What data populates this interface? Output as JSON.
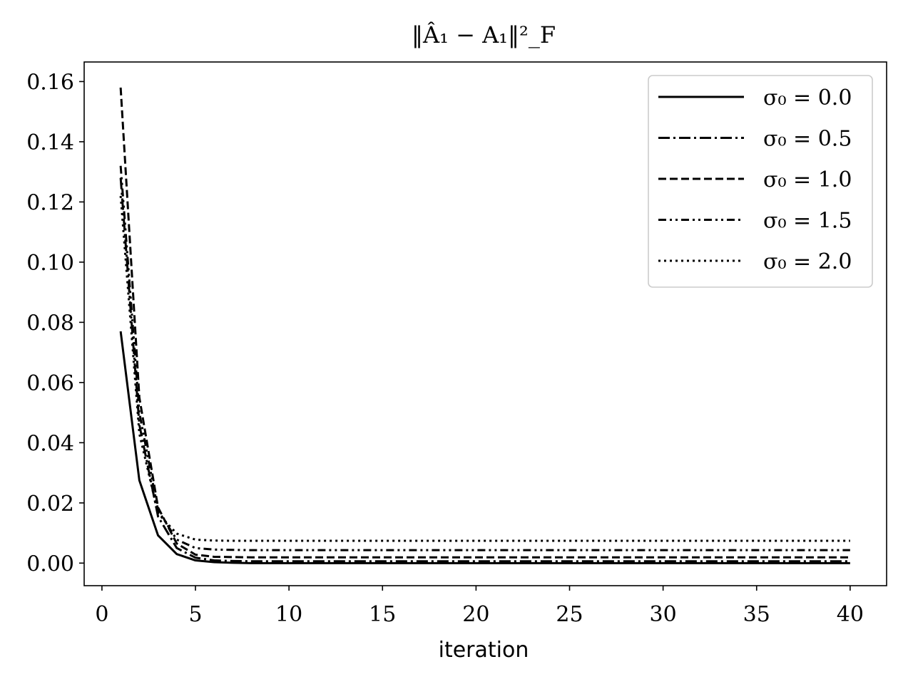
{
  "chart_data": {
    "type": "line",
    "title": "‖Â₁ − A₁‖²_F",
    "xlabel": "iteration",
    "ylabel": "",
    "xlim": [
      -0.95,
      41.95
    ],
    "ylim": [
      -0.0075,
      0.1665
    ],
    "xticks": [
      0,
      5,
      10,
      15,
      20,
      25,
      30,
      35,
      40
    ],
    "yticks": [
      0.0,
      0.02,
      0.04,
      0.06,
      0.08,
      0.1,
      0.12,
      0.14,
      0.16
    ],
    "ytick_labels": [
      "0.00",
      "0.02",
      "0.04",
      "0.06",
      "0.08",
      "0.10",
      "0.12",
      "0.14",
      "0.16"
    ],
    "grid": false,
    "legend": "top-right",
    "x": [
      1,
      2,
      3,
      4,
      5,
      6,
      7,
      8,
      9,
      10,
      11,
      12,
      13,
      14,
      15,
      16,
      17,
      18,
      19,
      20,
      21,
      22,
      23,
      24,
      25,
      26,
      27,
      28,
      29,
      30,
      31,
      32,
      33,
      34,
      35,
      36,
      37,
      38,
      39,
      40
    ],
    "series": [
      {
        "name": "σ₀ = 0.0",
        "dash": "solid",
        "color": "#000000",
        "values": [
          0.077,
          0.0275,
          0.0092,
          0.003,
          0.0009,
          0.0003,
          0.0001,
          0.0,
          0.0,
          0.0,
          0.0,
          0.0,
          0.0,
          0.0,
          0.0,
          0.0,
          0.0,
          0.0,
          0.0,
          0.0,
          0.0,
          0.0,
          0.0,
          0.0,
          0.0,
          0.0,
          0.0,
          0.0,
          0.0,
          0.0,
          0.0,
          0.0,
          0.0,
          0.0,
          0.0,
          0.0,
          0.0,
          0.0,
          0.0,
          0.0
        ]
      },
      {
        "name": "σ₀ = 0.5",
        "dash": "dashdot",
        "color": "#000000",
        "values": [
          0.128,
          0.046,
          0.0155,
          0.005,
          0.0018,
          0.0009,
          0.0007,
          0.0006,
          0.0006,
          0.0006,
          0.0006,
          0.0006,
          0.0006,
          0.0006,
          0.0006,
          0.0006,
          0.0006,
          0.0006,
          0.0006,
          0.0006,
          0.0006,
          0.0006,
          0.0006,
          0.0006,
          0.0006,
          0.0006,
          0.0006,
          0.0006,
          0.0006,
          0.0006,
          0.0006,
          0.0006,
          0.0006,
          0.0006,
          0.0006,
          0.0006,
          0.0006,
          0.0006,
          0.0006,
          0.0006
        ]
      },
      {
        "name": "σ₀ = 1.0",
        "dash": "dashed",
        "color": "#000000",
        "values": [
          0.158,
          0.055,
          0.0185,
          0.0065,
          0.0028,
          0.0021,
          0.002,
          0.0019,
          0.0019,
          0.0019,
          0.0019,
          0.0019,
          0.0019,
          0.0019,
          0.0019,
          0.0019,
          0.0019,
          0.0019,
          0.0019,
          0.0019,
          0.0019,
          0.0019,
          0.0019,
          0.0019,
          0.0019,
          0.0019,
          0.0019,
          0.0019,
          0.0019,
          0.0019,
          0.0019,
          0.0019,
          0.0019,
          0.0019,
          0.0019,
          0.0019,
          0.0019,
          0.0019,
          0.0019,
          0.0019
        ]
      },
      {
        "name": "σ₀ = 1.5",
        "dash": "dashdotdot",
        "color": "#000000",
        "values": [
          0.132,
          0.05,
          0.0175,
          0.0078,
          0.005,
          0.0045,
          0.0044,
          0.0043,
          0.0043,
          0.0043,
          0.0043,
          0.0043,
          0.0043,
          0.0043,
          0.0043,
          0.0043,
          0.0043,
          0.0043,
          0.0043,
          0.0043,
          0.0043,
          0.0043,
          0.0043,
          0.0043,
          0.0043,
          0.0043,
          0.0043,
          0.0043,
          0.0043,
          0.0043,
          0.0043,
          0.0043,
          0.0043,
          0.0043,
          0.0043,
          0.0043,
          0.0043,
          0.0043,
          0.0043,
          0.0043
        ]
      },
      {
        "name": "σ₀ = 2.0",
        "dash": "dotted",
        "color": "#000000",
        "values": [
          0.122,
          0.043,
          0.0165,
          0.0098,
          0.0078,
          0.0075,
          0.0074,
          0.0074,
          0.0074,
          0.0074,
          0.0074,
          0.0074,
          0.0074,
          0.0074,
          0.0074,
          0.0074,
          0.0074,
          0.0074,
          0.0074,
          0.0074,
          0.0074,
          0.0074,
          0.0074,
          0.0074,
          0.0074,
          0.0074,
          0.0074,
          0.0074,
          0.0074,
          0.0074,
          0.0074,
          0.0074,
          0.0074,
          0.0074,
          0.0074,
          0.0074,
          0.0074,
          0.0074,
          0.0074,
          0.0074
        ]
      }
    ]
  }
}
